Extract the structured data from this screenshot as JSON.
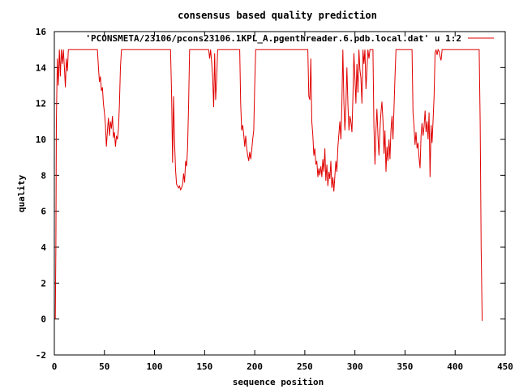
{
  "chart_data": {
    "type": "line",
    "title": "consensus based quality prediction",
    "xlabel": "sequence position",
    "ylabel": "quality",
    "xlim": [
      0,
      450
    ],
    "ylim": [
      -2,
      16
    ],
    "x_ticks": [
      0,
      50,
      100,
      150,
      200,
      250,
      300,
      350,
      400,
      450
    ],
    "y_ticks": [
      -2,
      0,
      2,
      4,
      6,
      8,
      10,
      12,
      14,
      16
    ],
    "grid": false,
    "legend_position": "top-right",
    "series": [
      {
        "name": "'PCONSMETA/23106/pcons23106.1KPL_A.pgenthreader.6.pdb.local.dat' u 1:2",
        "color": "#e00000",
        "points": [
          [
            1,
            0
          ],
          [
            1.5,
            4
          ],
          [
            2,
            11
          ],
          [
            3,
            14.5
          ],
          [
            4,
            13
          ],
          [
            5,
            15
          ],
          [
            6,
            13.5
          ],
          [
            7,
            15
          ],
          [
            8,
            14.2
          ],
          [
            9,
            15
          ],
          [
            10,
            14
          ],
          [
            11,
            12.9
          ],
          [
            12,
            14.5
          ],
          [
            13,
            13.8
          ],
          [
            14,
            15
          ],
          [
            16,
            15
          ],
          [
            20,
            15
          ],
          [
            30,
            15
          ],
          [
            40,
            15
          ],
          [
            43,
            15
          ],
          [
            44,
            14
          ],
          [
            45,
            13.2
          ],
          [
            46,
            13.5
          ],
          [
            47,
            12.7
          ],
          [
            48,
            12.9
          ],
          [
            49,
            12
          ],
          [
            50,
            11.5
          ],
          [
            51,
            10.8
          ],
          [
            52,
            9.6
          ],
          [
            53,
            10.5
          ],
          [
            54,
            11.2
          ],
          [
            55,
            10.2
          ],
          [
            56,
            11
          ],
          [
            57,
            10.6
          ],
          [
            58,
            11.3
          ],
          [
            59,
            10.1
          ],
          [
            60,
            10.4
          ],
          [
            61,
            9.6
          ],
          [
            62,
            10.2
          ],
          [
            63,
            10
          ],
          [
            64,
            10.6
          ],
          [
            65,
            12
          ],
          [
            66,
            14
          ],
          [
            67,
            15
          ],
          [
            70,
            15
          ],
          [
            80,
            15
          ],
          [
            90,
            15
          ],
          [
            100,
            15
          ],
          [
            110,
            15
          ],
          [
            116,
            15
          ],
          [
            117,
            12.5
          ],
          [
            118,
            8.7
          ],
          [
            119,
            12.4
          ],
          [
            120,
            9.8
          ],
          [
            121,
            8.3
          ],
          [
            122,
            7.5
          ],
          [
            123,
            7.4
          ],
          [
            124,
            7.3
          ],
          [
            125,
            7.4
          ],
          [
            126,
            7.2
          ],
          [
            127,
            7.3
          ],
          [
            128,
            7.5
          ],
          [
            129,
            8.1
          ],
          [
            130,
            7.6
          ],
          [
            131,
            8.8
          ],
          [
            132,
            8.5
          ],
          [
            133,
            9.5
          ],
          [
            134,
            12
          ],
          [
            135,
            15
          ],
          [
            140,
            15
          ],
          [
            150,
            15
          ],
          [
            154,
            15
          ],
          [
            155,
            14.5
          ],
          [
            156,
            15
          ],
          [
            157,
            14.3
          ],
          [
            158,
            13.5
          ],
          [
            159,
            11.8
          ],
          [
            160,
            14.8
          ],
          [
            161,
            12.2
          ],
          [
            162,
            13.4
          ],
          [
            163,
            15
          ],
          [
            170,
            15
          ],
          [
            180,
            15
          ],
          [
            185,
            15
          ],
          [
            186,
            12
          ],
          [
            187,
            10.5
          ],
          [
            188,
            10.8
          ],
          [
            189,
            10.3
          ],
          [
            190,
            9.6
          ],
          [
            191,
            10.2
          ],
          [
            192,
            9.5
          ],
          [
            193,
            9.1
          ],
          [
            194,
            8.8
          ],
          [
            195,
            9.3
          ],
          [
            196,
            8.9
          ],
          [
            197,
            9.4
          ],
          [
            198,
            10
          ],
          [
            199,
            10.5
          ],
          [
            200,
            13
          ],
          [
            201,
            15
          ],
          [
            210,
            15
          ],
          [
            220,
            15
          ],
          [
            230,
            15
          ],
          [
            240,
            15
          ],
          [
            250,
            15
          ],
          [
            253,
            15
          ],
          [
            254,
            12.4
          ],
          [
            255,
            12.2
          ],
          [
            256,
            14.5
          ],
          [
            257,
            11
          ],
          [
            258,
            10.2
          ],
          [
            259,
            9.1
          ],
          [
            260,
            9.5
          ],
          [
            261,
            8.6
          ],
          [
            262,
            8.8
          ],
          [
            263,
            7.9
          ],
          [
            264,
            8.4
          ],
          [
            265,
            8
          ],
          [
            266,
            8.5
          ],
          [
            267,
            7.9
          ],
          [
            268,
            8.9
          ],
          [
            269,
            8.2
          ],
          [
            270,
            9.5
          ],
          [
            271,
            7.7
          ],
          [
            272,
            8.6
          ],
          [
            273,
            7.4
          ],
          [
            274,
            8.2
          ],
          [
            275,
            7.8
          ],
          [
            276,
            8.8
          ],
          [
            277,
            7.3
          ],
          [
            278,
            7.9
          ],
          [
            279,
            7.1
          ],
          [
            280,
            8
          ],
          [
            281,
            8.8
          ],
          [
            282,
            8.2
          ],
          [
            283,
            9.6
          ],
          [
            284,
            10.3
          ],
          [
            285,
            11
          ],
          [
            286,
            10
          ],
          [
            287,
            12
          ],
          [
            288,
            15
          ],
          [
            289,
            12
          ],
          [
            290,
            10.5
          ],
          [
            291,
            11.8
          ],
          [
            292,
            14
          ],
          [
            293,
            12
          ],
          [
            294,
            10.5
          ],
          [
            295,
            11.3
          ],
          [
            296,
            11
          ],
          [
            297,
            10.4
          ],
          [
            298,
            12.4
          ],
          [
            299,
            14.8
          ],
          [
            300,
            13.4
          ],
          [
            301,
            12
          ],
          [
            302,
            14.2
          ],
          [
            303,
            12.6
          ],
          [
            304,
            15
          ],
          [
            305,
            13.9
          ],
          [
            306,
            13.4
          ],
          [
            307,
            12
          ],
          [
            308,
            15
          ],
          [
            309,
            14.2
          ],
          [
            310,
            15
          ],
          [
            311,
            12.8
          ],
          [
            312,
            13.9
          ],
          [
            313,
            15
          ],
          [
            314,
            14.5
          ],
          [
            315,
            15
          ],
          [
            316,
            15
          ],
          [
            318,
            15
          ],
          [
            319,
            10.7
          ],
          [
            320,
            8.6
          ],
          [
            321,
            10.5
          ],
          [
            322,
            11.7
          ],
          [
            323,
            10.2
          ],
          [
            324,
            9.1
          ],
          [
            325,
            10.6
          ],
          [
            326,
            11.5
          ],
          [
            327,
            12.1
          ],
          [
            328,
            11
          ],
          [
            329,
            9.2
          ],
          [
            330,
            10.5
          ],
          [
            331,
            8.2
          ],
          [
            332,
            9.6
          ],
          [
            333,
            8.8
          ],
          [
            334,
            10
          ],
          [
            335,
            8.9
          ],
          [
            336,
            10.5
          ],
          [
            337,
            11.3
          ],
          [
            338,
            10
          ],
          [
            339,
            11.8
          ],
          [
            340,
            13.5
          ],
          [
            341,
            15
          ],
          [
            345,
            15
          ],
          [
            350,
            15
          ],
          [
            355,
            15
          ],
          [
            357,
            15
          ],
          [
            358,
            11.5
          ],
          [
            359,
            10.7
          ],
          [
            360,
            9.7
          ],
          [
            361,
            10.4
          ],
          [
            362,
            9.5
          ],
          [
            363,
            9.8
          ],
          [
            364,
            9
          ],
          [
            365,
            8.4
          ],
          [
            366,
            10.2
          ],
          [
            367,
            10.9
          ],
          [
            368,
            10.2
          ],
          [
            369,
            10.7
          ],
          [
            370,
            11.6
          ],
          [
            371,
            10.4
          ],
          [
            372,
            11
          ],
          [
            373,
            10
          ],
          [
            374,
            11.5
          ],
          [
            375,
            7.9
          ],
          [
            376,
            10.8
          ],
          [
            377,
            9.8
          ],
          [
            378,
            11
          ],
          [
            379,
            12.4
          ],
          [
            380,
            14.8
          ],
          [
            381,
            15
          ],
          [
            382,
            14.7
          ],
          [
            383,
            15
          ],
          [
            384,
            14.9
          ],
          [
            385,
            14.6
          ],
          [
            386,
            14.4
          ],
          [
            387,
            15
          ],
          [
            390,
            15
          ],
          [
            400,
            15
          ],
          [
            410,
            15
          ],
          [
            420,
            15
          ],
          [
            424,
            15
          ],
          [
            425,
            11
          ],
          [
            426,
            4
          ],
          [
            427,
            -0.1
          ]
        ]
      }
    ]
  }
}
